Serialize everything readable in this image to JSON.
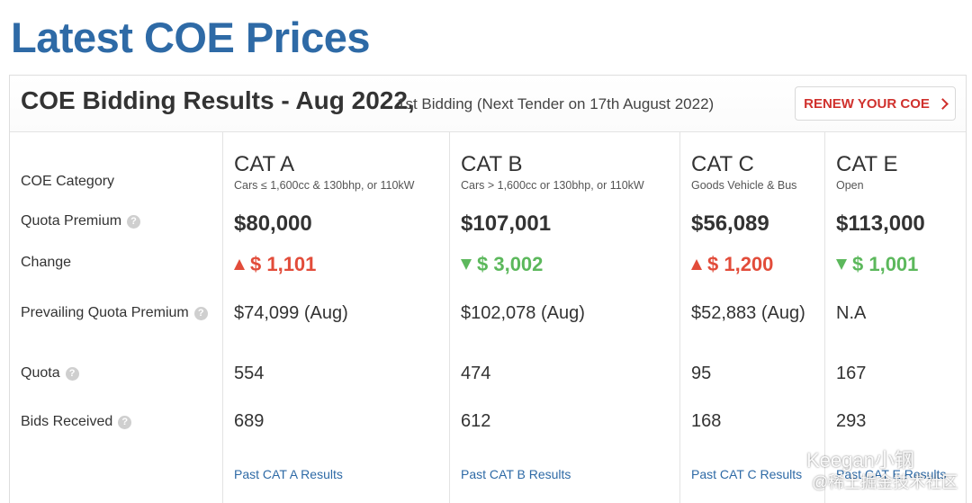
{
  "page": {
    "title": "Latest COE Prices"
  },
  "header": {
    "title": "COE Bidding Results - Aug 2022,",
    "subtitle": "1st Bidding (Next Tender on 17th August 2022)",
    "renew_label": "RENEW YOUR COE"
  },
  "row_labels": {
    "category": "COE Category",
    "quota_premium": "Quota Premium",
    "change": "Change",
    "prevailing": "Prevailing Quota Premium",
    "quota": "Quota",
    "bids": "Bids Received",
    "help_glyph": "?"
  },
  "categories": [
    {
      "name": "CAT A",
      "desc": "Cars ≤ 1,600cc & 130bhp, or 110kW",
      "premium": "$80,000",
      "change": "$ 1,101",
      "direction": "up",
      "pqp": "$74,099 (Aug)",
      "quota": "554",
      "bids": "689",
      "link": "Past CAT A Results"
    },
    {
      "name": "CAT B",
      "desc": "Cars > 1,600cc or 130bhp, or 110kW",
      "premium": "$107,001",
      "change": "$ 3,002",
      "direction": "down",
      "pqp": "$102,078 (Aug)",
      "quota": "474",
      "bids": "612",
      "link": "Past CAT B Results"
    },
    {
      "name": "CAT C",
      "desc": "Goods Vehicle & Bus",
      "premium": "$56,089",
      "change": "$ 1,200",
      "direction": "up",
      "pqp": "$52,883 (Aug)",
      "quota": "95",
      "bids": "168",
      "link": "Past CAT C Results"
    },
    {
      "name": "CAT E",
      "desc": "Open",
      "premium": "$113,000",
      "change": "$ 1,001",
      "direction": "down",
      "pqp": "N.A",
      "quota": "167",
      "bids": "293",
      "link": "Past CAT E Results"
    }
  ],
  "watermark": {
    "line1": "Keegan小钢",
    "line2": "@稀土掘金技术社区",
    "icon": "wechat-icon"
  },
  "colors": {
    "brand": "#2e6aa6",
    "up": "#e24c3a",
    "down": "#5cb85c",
    "renew": "#d0312d"
  }
}
